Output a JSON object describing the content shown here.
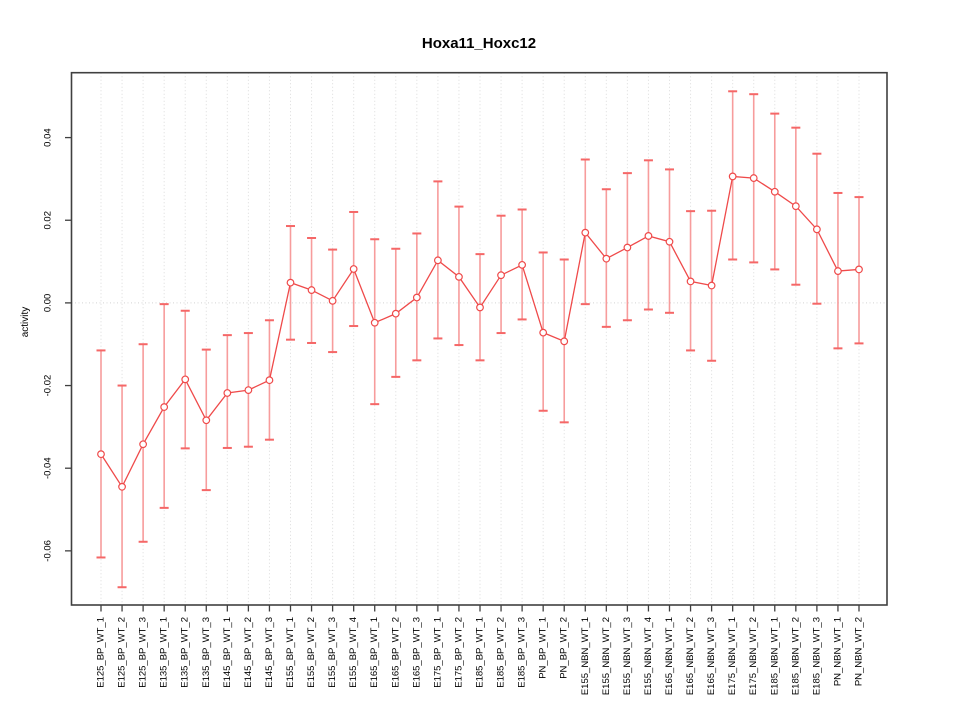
{
  "chart_data": {
    "type": "scatter",
    "subtype": "points-with-error-bars-and-connecting-line",
    "title": "Hoxa11_Hoxc12",
    "xlabel": "",
    "ylabel": "activity",
    "legend": "none",
    "grid": "vertical dotted gridline at every category; dotted horizontal line at y=0",
    "point_style": "open-circle",
    "ylim": [
      -0.0731,
      0.0557
    ],
    "yticks": [
      0.04,
      0.02,
      0,
      -0.02,
      -0.04,
      -0.06
    ],
    "ytick_labels": [
      "0.04",
      "0.02",
      "0.00",
      "-0.02",
      "-0.04",
      "-0.06"
    ],
    "categories": [
      "E125_BP_WT_1",
      "E125_BP_WT_2",
      "E125_BP_WT_3",
      "E135_BP_WT_1",
      "E135_BP_WT_2",
      "E135_BP_WT_3",
      "E145_BP_WT_1",
      "E145_BP_WT_2",
      "E145_BP_WT_3",
      "E155_BP_WT_1",
      "E155_BP_WT_2",
      "E155_BP_WT_3",
      "E155_BP_WT_4",
      "E165_BP_WT_1",
      "E165_BP_WT_2",
      "E165_BP_WT_3",
      "E175_BP_WT_1",
      "E175_BP_WT_2",
      "E185_BP_WT_1",
      "E185_BP_WT_2",
      "E185_BP_WT_3",
      "PN_BP_WT_1",
      "PN_BP_WT_2",
      "E155_NBN_WT_1",
      "E155_NBN_WT_2",
      "E155_NBN_WT_3",
      "E155_NBN_WT_4",
      "E165_NBN_WT_1",
      "E165_NBN_WT_2",
      "E165_NBN_WT_3",
      "E175_NBN_WT_1",
      "E175_NBN_WT_2",
      "E185_NBN_WT_1",
      "E185_NBN_WT_2",
      "E185_NBN_WT_3",
      "PN_NBN_WT_1",
      "PN_NBN_WT_2"
    ],
    "series": [
      {
        "name": "activity",
        "values": [
          -0.0366,
          -0.0445,
          -0.0342,
          -0.0252,
          -0.0185,
          -0.0284,
          -0.0218,
          -0.0211,
          -0.0187,
          0.0049,
          0.0031,
          0.0005,
          0.0082,
          -0.0048,
          -0.0026,
          0.0013,
          0.0103,
          0.0063,
          -0.0011,
          0.0067,
          0.0092,
          -0.0072,
          -0.0093,
          0.017,
          0.0107,
          0.0134,
          0.0162,
          0.0148,
          0.0052,
          0.0042,
          0.0306,
          0.0302,
          0.0269,
          0.0234,
          0.0178,
          0.0077,
          0.0081
        ],
        "error_low": [
          -0.0616,
          -0.0688,
          -0.0578,
          -0.0496,
          -0.0352,
          -0.0453,
          -0.0351,
          -0.0348,
          -0.0331,
          -0.0089,
          -0.0097,
          -0.0119,
          -0.0056,
          -0.0245,
          -0.0179,
          -0.0139,
          -0.0086,
          -0.0102,
          -0.0139,
          -0.0073,
          -0.004,
          -0.0261,
          -0.0289,
          -0.0003,
          -0.0058,
          -0.0042,
          -0.0016,
          -0.0024,
          -0.0115,
          -0.014,
          0.0105,
          0.0098,
          0.0081,
          0.0044,
          -0.0002,
          -0.011,
          -0.0098
        ],
        "error_high": [
          -0.0115,
          -0.02,
          -0.01,
          -0.0003,
          -0.0019,
          -0.0113,
          -0.0078,
          -0.0073,
          -0.0042,
          0.0186,
          0.0157,
          0.0129,
          0.022,
          0.0154,
          0.0131,
          0.0168,
          0.0294,
          0.0233,
          0.0118,
          0.0211,
          0.0226,
          0.0122,
          0.0105,
          0.0347,
          0.0275,
          0.0314,
          0.0345,
          0.0323,
          0.0222,
          0.0223,
          0.0512,
          0.0505,
          0.0458,
          0.0424,
          0.0361,
          0.0266,
          0.0256
        ]
      }
    ],
    "colors": {
      "series_line": "#ef4a4a",
      "point_stroke": "#ef4a4a",
      "point_fill": "#ffffff",
      "error_stem": "#f79c9c",
      "error_cap": "#f56767",
      "gridline": "#dcdcdc",
      "zero_line": "#d4d4d4",
      "axis": "#404040",
      "text": "#000000",
      "background": "#ffffff"
    }
  }
}
